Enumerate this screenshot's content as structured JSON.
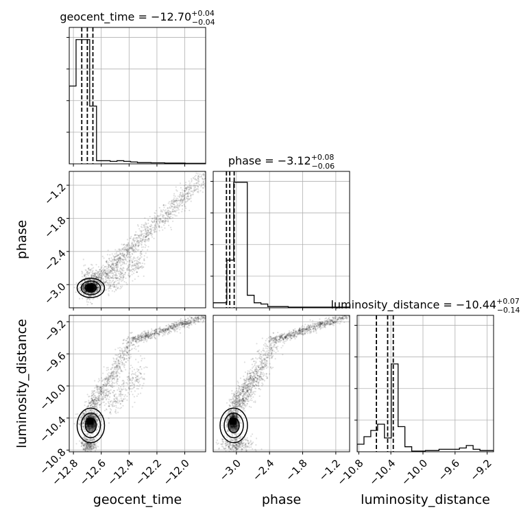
{
  "chart_data": {
    "type": "corner",
    "parameters": [
      {
        "key": "geocent_time",
        "label": "geocent_time",
        "range": [
          -12.83,
          -11.85
        ],
        "ticks": [
          -12.8,
          -12.6,
          -12.4,
          -12.2,
          -12.0
        ],
        "tick_labels": [
          "−12.8",
          "−12.6",
          "−12.4",
          "−12.2",
          "−12.0"
        ],
        "title": {
          "main": "geocent_time = −12.70",
          "sup": "+0.04",
          "sub": "−0.04"
        },
        "quantiles": [
          -12.74,
          -12.7,
          -12.66
        ],
        "hist_bins": [
          0.62,
          0.99,
          0.99,
          0.46,
          0.025,
          0.025,
          0.02,
          0.025,
          0.02,
          0.015,
          0.01,
          0.01,
          0.008,
          0.008,
          0.006,
          0.006,
          0.006,
          0.004,
          0.004,
          0.004
        ]
      },
      {
        "key": "phase",
        "label": "phase",
        "range": [
          -3.42,
          -0.95
        ],
        "ticks": [
          -3.0,
          -2.4,
          -1.8,
          -1.2
        ],
        "tick_labels": [
          "−3.0",
          "−2.4",
          "−1.8",
          "−1.2"
        ],
        "title": {
          "main": "phase = −3.12",
          "sup": "+0.08",
          "sub": "−0.06"
        },
        "quantiles": [
          -3.18,
          -3.12,
          -3.04
        ],
        "hist_bins": [
          0.04,
          0.04,
          0.38,
          1.0,
          1.0,
          0.1,
          0.04,
          0.03,
          0.01,
          0.01,
          0.01,
          0.005,
          0.005,
          0.005,
          0.005,
          0.005,
          0.005,
          0.005,
          0.005,
          0.005
        ]
      },
      {
        "key": "luminosity_distance",
        "label": "luminosity_distance",
        "range": [
          -10.82,
          -9.12
        ],
        "ticks": [
          -10.8,
          -10.4,
          -10.0,
          -9.6,
          -9.2
        ],
        "tick_labels": [
          "−10.8",
          "−10.4",
          "−10.0",
          "−9.6",
          "−9.2"
        ],
        "title": {
          "main": "luminosity_distance = −10.44",
          "sup": "+0.07",
          "sub": "−0.14"
        },
        "quantiles": [
          -10.58,
          -10.44,
          -10.37
        ],
        "hist_bins": [
          0.06,
          0.12,
          0.17,
          0.22,
          0.11,
          0.7,
          0.2,
          0.04,
          0.005,
          0.005,
          0.01,
          0.01,
          0.02,
          0.02,
          0.02,
          0.03,
          0.05,
          0.02,
          0.01,
          0.01
        ]
      }
    ],
    "density_peaks": {
      "geocent_time": -12.68,
      "phase": -3.06,
      "luminosity_distance": -10.44
    },
    "grid": true
  }
}
